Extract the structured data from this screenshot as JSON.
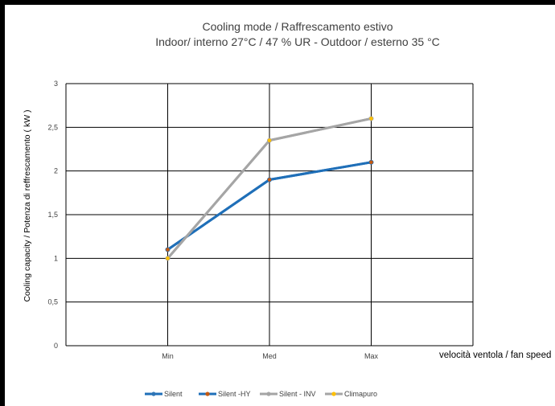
{
  "chart_data": {
    "type": "line",
    "title": "Cooling mode / Raffrescamento estivo",
    "subtitle": "Indoor/ interno  27°C / 47 % UR - Outdoor / esterno 35 °C",
    "xlabel": "velocità ventola / fan speed",
    "ylabel": "Cooling capacity / Potenza di reffrescamento  ( kW )",
    "categories": [
      "Min",
      "Med",
      "Max"
    ],
    "ylim": [
      0,
      3
    ],
    "yticks": [
      "0",
      "0,5",
      "1",
      "1,5",
      "2",
      "2,5",
      "3"
    ],
    "grid": true,
    "legend_position": "bottom",
    "series": [
      {
        "name": "Silent",
        "values": [
          1.1,
          1.9,
          2.1
        ],
        "line_color": "#1f6fb8",
        "marker_color": "#2e75b6"
      },
      {
        "name": "Silent -HY",
        "values": [
          1.1,
          1.9,
          2.1
        ],
        "line_color": "#1f6fb8",
        "marker_color": "#c55a11"
      },
      {
        "name": "Silent - INV",
        "values": [
          1.0,
          2.35,
          2.6
        ],
        "line_color": "#a5a5a5",
        "marker_color": "#a5a5a5"
      },
      {
        "name": "Climapuro",
        "values": [
          1.0,
          2.35,
          2.6
        ],
        "line_color": "#a5a5a5",
        "marker_color": "#ffc000"
      }
    ]
  }
}
